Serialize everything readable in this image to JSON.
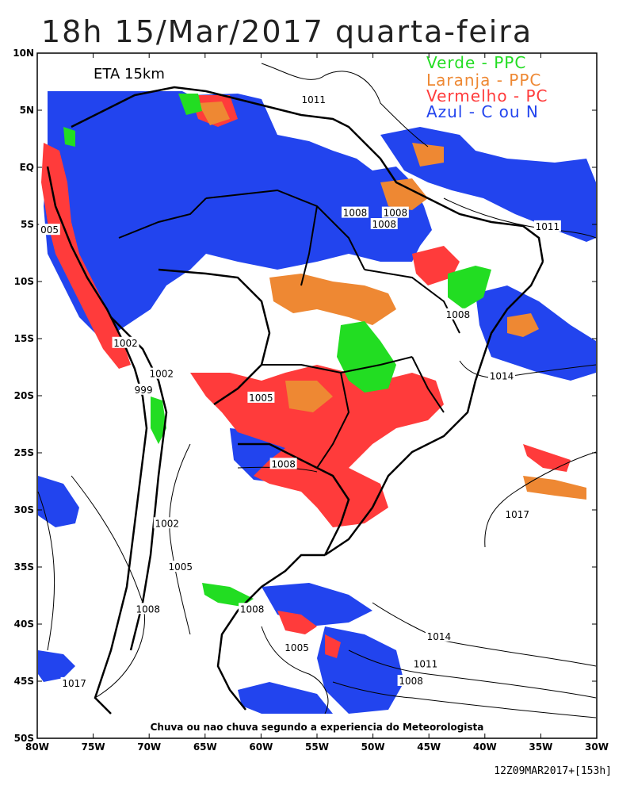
{
  "title": "18h 15/Mar/2017 quarta-feira",
  "model": "ETA 15km",
  "legend": [
    {
      "label": "Verde - PPC",
      "color": "#22dd22"
    },
    {
      "label": "Laranja - PPC",
      "color": "#ee8833"
    },
    {
      "label": "Vermelho - PC",
      "color": "#ff3b3b"
    },
    {
      "label": "Azul - C ou N",
      "color": "#2244ee"
    }
  ],
  "caption": "Chuva ou nao chuva segundo a experiencia do Meteorologista",
  "footer": "12Z09MAR2017+[153h]",
  "axes": {
    "lat_ticks": [
      "10N",
      "5N",
      "EQ",
      "5S",
      "10S",
      "15S",
      "20S",
      "25S",
      "30S",
      "35S",
      "40S",
      "45S",
      "50S"
    ],
    "lon_ticks": [
      "80W",
      "75W",
      "70W",
      "65W",
      "60W",
      "55W",
      "50W",
      "45W",
      "40W",
      "35W",
      "30W"
    ]
  },
  "isobars": [
    {
      "text": "1011",
      "lat": 5.9,
      "lon": -55.3
    },
    {
      "text": "1011",
      "lat": -5.2,
      "lon": -34.4
    },
    {
      "text": "1008",
      "lat": -4.0,
      "lon": -51.6
    },
    {
      "text": "1008",
      "lat": -4.0,
      "lon": -48.0
    },
    {
      "text": "1008",
      "lat": -5.0,
      "lon": -49.0
    },
    {
      "text": "1008",
      "lat": -12.9,
      "lon": -42.4
    },
    {
      "text": "005",
      "lat": -5.5,
      "lon": -78.9
    },
    {
      "text": "1002",
      "lat": -15.4,
      "lon": -72.1
    },
    {
      "text": "1002",
      "lat": -18.1,
      "lon": -68.9
    },
    {
      "text": "999",
      "lat": -19.5,
      "lon": -70.5
    },
    {
      "text": "1005",
      "lat": -20.2,
      "lon": -60.0
    },
    {
      "text": "1014",
      "lat": -18.3,
      "lon": -38.5
    },
    {
      "text": "1008",
      "lat": -26.0,
      "lon": -58.0
    },
    {
      "text": "1017",
      "lat": -30.4,
      "lon": -37.1
    },
    {
      "text": "1002",
      "lat": -31.2,
      "lon": -68.4
    },
    {
      "text": "1005",
      "lat": -35.0,
      "lon": -67.2
    },
    {
      "text": "1008",
      "lat": -38.7,
      "lon": -70.1
    },
    {
      "text": "1008",
      "lat": -38.7,
      "lon": -60.8
    },
    {
      "text": "1014",
      "lat": -41.1,
      "lon": -44.1
    },
    {
      "text": "1005",
      "lat": -42.1,
      "lon": -56.8
    },
    {
      "text": "1011",
      "lat": -43.5,
      "lon": -45.3
    },
    {
      "text": "1008",
      "lat": -45.0,
      "lon": -46.6
    },
    {
      "text": "1017",
      "lat": -45.2,
      "lon": -76.7
    }
  ]
}
